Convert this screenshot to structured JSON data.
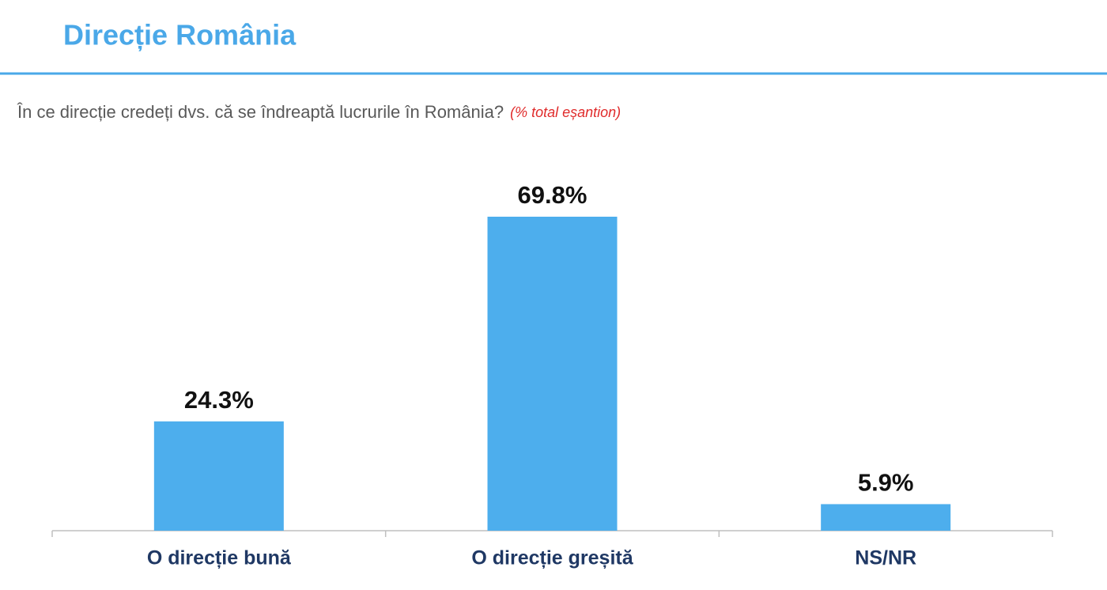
{
  "chart_data": {
    "type": "bar",
    "title": "Direcție România",
    "subtitle": "În ce direcție credeți dvs. că se îndreaptă lucrurile în România?",
    "note": "(% total eșantion)",
    "categories": [
      "O direcție bună",
      "O direcție greșită",
      "NS/NR"
    ],
    "values": [
      24.3,
      69.8,
      5.9
    ],
    "value_labels": [
      "24.3%",
      "69.8%",
      "5.9%"
    ],
    "color": "#4daeed"
  }
}
